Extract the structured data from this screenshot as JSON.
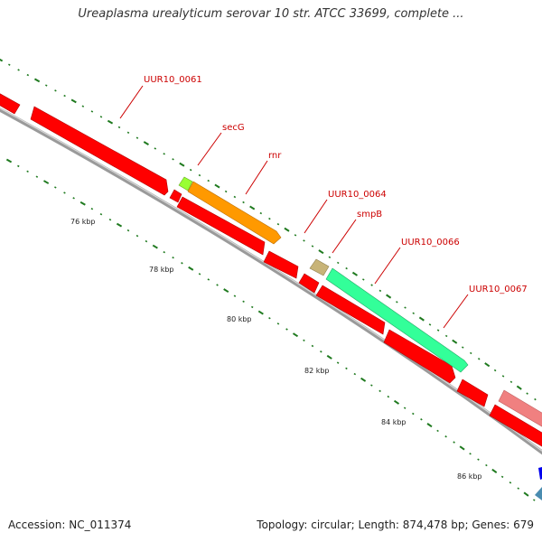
{
  "title": "Ureaplasma urealyticum serovar 10 str. ATCC 33699, complete ...",
  "footer": {
    "accession": "Accession: NC_011374",
    "summary": "Topology: circular; Length: 874,478 bp; Genes: 679"
  },
  "scale_labels": [
    "76 kbp",
    "78 kbp",
    "80 kbp",
    "82 kbp",
    "84 kbp",
    "86 kbp"
  ],
  "gene_labels": [
    "UUR10_0061",
    "secG",
    "rnr",
    "UUR10_0064",
    "smpB",
    "UUR10_0066",
    "UUR10_0067"
  ],
  "colors": {
    "gene_default": "#ff0000",
    "secG": "#99ff33",
    "rnr": "#ff9900",
    "smpB": "#c8b478",
    "UUR10_0066": "#33ff99",
    "UUR10_0067": "#f08080",
    "backbone": "#888888",
    "tick": "#228822",
    "label": "#cc0000",
    "blue_feature": "#0000ee",
    "teal_feature": "#4a8cb0"
  }
}
